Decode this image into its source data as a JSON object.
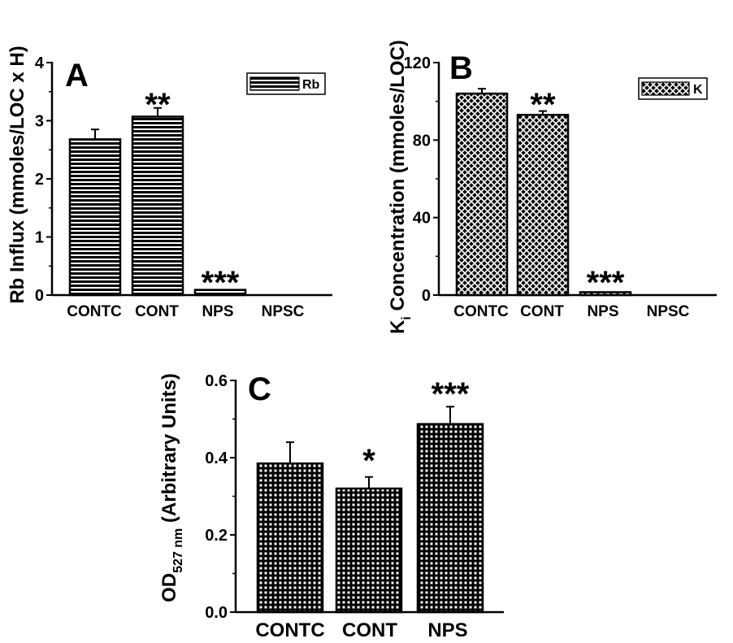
{
  "chart_data": [
    {
      "panel": "A",
      "type": "bar",
      "categories": [
        "CONTC",
        "CONT",
        "NPS",
        "NPSC"
      ],
      "values": [
        2.68,
        3.07,
        0.09,
        0
      ],
      "errors": [
        0.17,
        0.15,
        0,
        0
      ],
      "significance": [
        "",
        "**",
        "***",
        ""
      ],
      "ylabel": "Rb Influx (mmoles/LOC x H)",
      "ylim": [
        0,
        4
      ],
      "yticks": [
        0,
        1,
        2,
        3,
        4
      ],
      "legend": {
        "label": "Rb",
        "pattern": "horizontal-lines",
        "placement": "top-right"
      }
    },
    {
      "panel": "B",
      "type": "bar",
      "categories": [
        "CONTC",
        "CONT",
        "NPS",
        "NPSC"
      ],
      "values": [
        104,
        93,
        1.5,
        0
      ],
      "errors": [
        2.5,
        2.0,
        0,
        0
      ],
      "significance": [
        "",
        "**",
        "***",
        ""
      ],
      "ylabel_main": "K",
      "ylabel_sub": "i",
      "ylabel_rest": " Concentration (mmoles/LOC)",
      "ylim": [
        0,
        120
      ],
      "yticks": [
        0,
        40,
        80,
        120
      ],
      "legend": {
        "label": "K",
        "pattern": "crosshatch",
        "placement": "top-right"
      }
    },
    {
      "panel": "C",
      "type": "bar",
      "categories": [
        "CONTC",
        "CONT",
        "NPS"
      ],
      "values": [
        0.385,
        0.32,
        0.487
      ],
      "errors": [
        0.055,
        0.03,
        0.045
      ],
      "significance": [
        "",
        "*",
        "***"
      ],
      "ylabel_main": "OD",
      "ylabel_sub": "527 nm",
      "ylabel_rest": " (Arbitrary Units)",
      "ylim": [
        0,
        0.6
      ],
      "yticks": [
        "0.0",
        "0.2",
        "0.4",
        "0.6"
      ],
      "ytick_values": [
        0,
        0.2,
        0.4,
        0.6
      ]
    }
  ]
}
